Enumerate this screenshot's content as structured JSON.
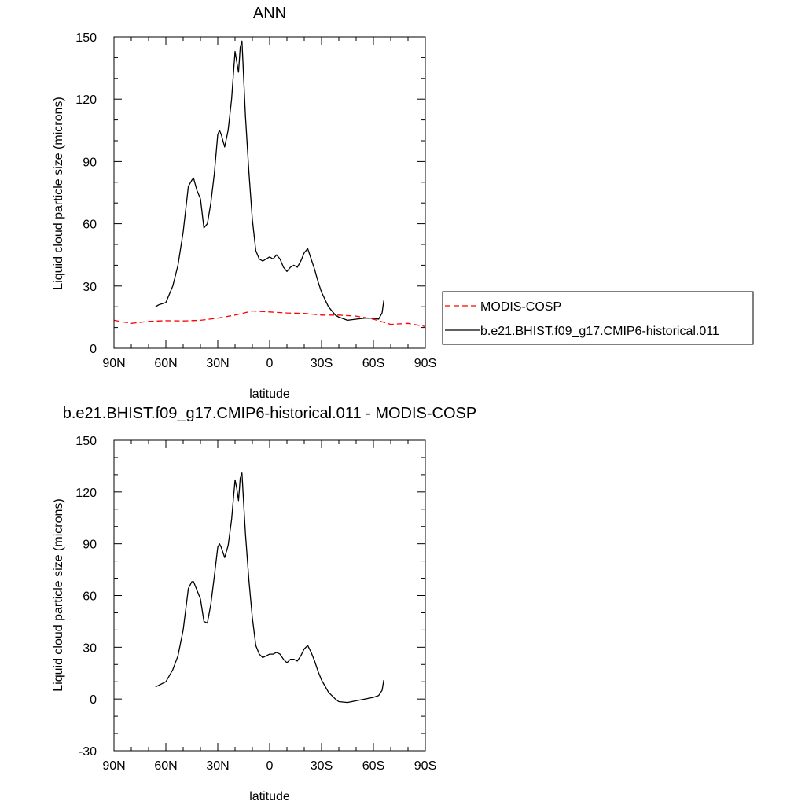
{
  "chart_data": [
    {
      "type": "line",
      "title": "ANN",
      "xlabel": "latitude",
      "ylabel": "Liquid cloud particle size (microns)",
      "xlim": [
        90,
        -90
      ],
      "ylim": [
        0,
        150
      ],
      "xticks": [
        90,
        60,
        30,
        0,
        -30,
        -60,
        -90
      ],
      "xtick_labels": [
        "90N",
        "60N",
        "30N",
        "0",
        "30S",
        "60S",
        "90S"
      ],
      "yticks": [
        0,
        30,
        60,
        90,
        120,
        150
      ],
      "ytick_labels": [
        "0",
        "30",
        "60",
        "90",
        "120",
        "150"
      ],
      "grid": false,
      "legend": "right",
      "series": [
        {
          "name": "MODIS-COSP",
          "color": "#ff0000",
          "dash": "dashed",
          "x": [
            90,
            80,
            70,
            60,
            50,
            40,
            30,
            20,
            10,
            0,
            -10,
            -20,
            -30,
            -40,
            -50,
            -60,
            -70,
            -80,
            -90
          ],
          "y": [
            13.5,
            12.0,
            13.0,
            13.3,
            13.2,
            13.5,
            14.5,
            16.0,
            18.0,
            17.5,
            17.0,
            16.8,
            16.0,
            16.0,
            15.5,
            14.0,
            11.5,
            12.0,
            10.5
          ]
        },
        {
          "name": "b.e21.BHIST.f09_g17.CMIP6-historical.011",
          "color": "#000000",
          "dash": "solid",
          "x": [
            66,
            64,
            60,
            56,
            53,
            50,
            47,
            45,
            44,
            42,
            40,
            38,
            36,
            34,
            32,
            30,
            29,
            28,
            26,
            24,
            22,
            20,
            19,
            18,
            17,
            16,
            15,
            14,
            12,
            10,
            8,
            6,
            4,
            2,
            0,
            -2,
            -4,
            -6,
            -8,
            -10,
            -12,
            -14,
            -16,
            -18,
            -20,
            -22,
            -24,
            -26,
            -28,
            -30,
            -34,
            -38,
            -40,
            -45,
            -50,
            -55,
            -60,
            -63,
            -65,
            -66
          ],
          "y": [
            20,
            21,
            22,
            30,
            40,
            56,
            78,
            81,
            82,
            76,
            72,
            58,
            60,
            70,
            84,
            103,
            105,
            103,
            97,
            105,
            120,
            143,
            138,
            133,
            145,
            148,
            130,
            112,
            85,
            62,
            47,
            43,
            42,
            43,
            44,
            43,
            45,
            43,
            39,
            37,
            39,
            40,
            39,
            42,
            46,
            48,
            43,
            38,
            32,
            27,
            20,
            16,
            15,
            13.5,
            14,
            14.5,
            14.5,
            14,
            17,
            23
          ]
        }
      ]
    },
    {
      "type": "line",
      "title": "b.e21.BHIST.f09_g17.CMIP6-historical.011 - MODIS-COSP",
      "xlabel": "latitude",
      "ylabel": "Liquid cloud particle size (microns)",
      "xlim": [
        90,
        -90
      ],
      "ylim": [
        -30,
        150
      ],
      "xticks": [
        90,
        60,
        30,
        0,
        -30,
        -60,
        -90
      ],
      "xtick_labels": [
        "90N",
        "60N",
        "30N",
        "0",
        "30S",
        "60S",
        "90S"
      ],
      "yticks": [
        -30,
        0,
        30,
        60,
        90,
        120,
        150
      ],
      "ytick_labels": [
        "-30",
        "0",
        "30",
        "60",
        "90",
        "120",
        "150"
      ],
      "grid": false,
      "series": [
        {
          "color": "#000000",
          "dash": "solid",
          "x": [
            66,
            64,
            60,
            56,
            53,
            50,
            47,
            45,
            44,
            42,
            40,
            38,
            36,
            34,
            32,
            30,
            29,
            28,
            26,
            24,
            22,
            20,
            19,
            18,
            17,
            16,
            15,
            14,
            12,
            10,
            8,
            6,
            4,
            2,
            0,
            -2,
            -4,
            -6,
            -8,
            -10,
            -12,
            -14,
            -16,
            -18,
            -20,
            -22,
            -24,
            -26,
            -28,
            -30,
            -34,
            -38,
            -40,
            -45,
            -50,
            -55,
            -60,
            -63,
            -65,
            -66
          ],
          "y": [
            7,
            8,
            10,
            17,
            25,
            40,
            64,
            68,
            68,
            63,
            58,
            45,
            44,
            55,
            71,
            88,
            90,
            88,
            82,
            89,
            104,
            127,
            122,
            115,
            128,
            131,
            113,
            96,
            69,
            47,
            31,
            26,
            24,
            25,
            26,
            26,
            27,
            26,
            23,
            21,
            23,
            23,
            22,
            25,
            29,
            31,
            27,
            22,
            16,
            11,
            4,
            0,
            -1.5,
            -2,
            -1,
            0,
            1,
            2,
            5,
            11
          ]
        }
      ]
    }
  ]
}
